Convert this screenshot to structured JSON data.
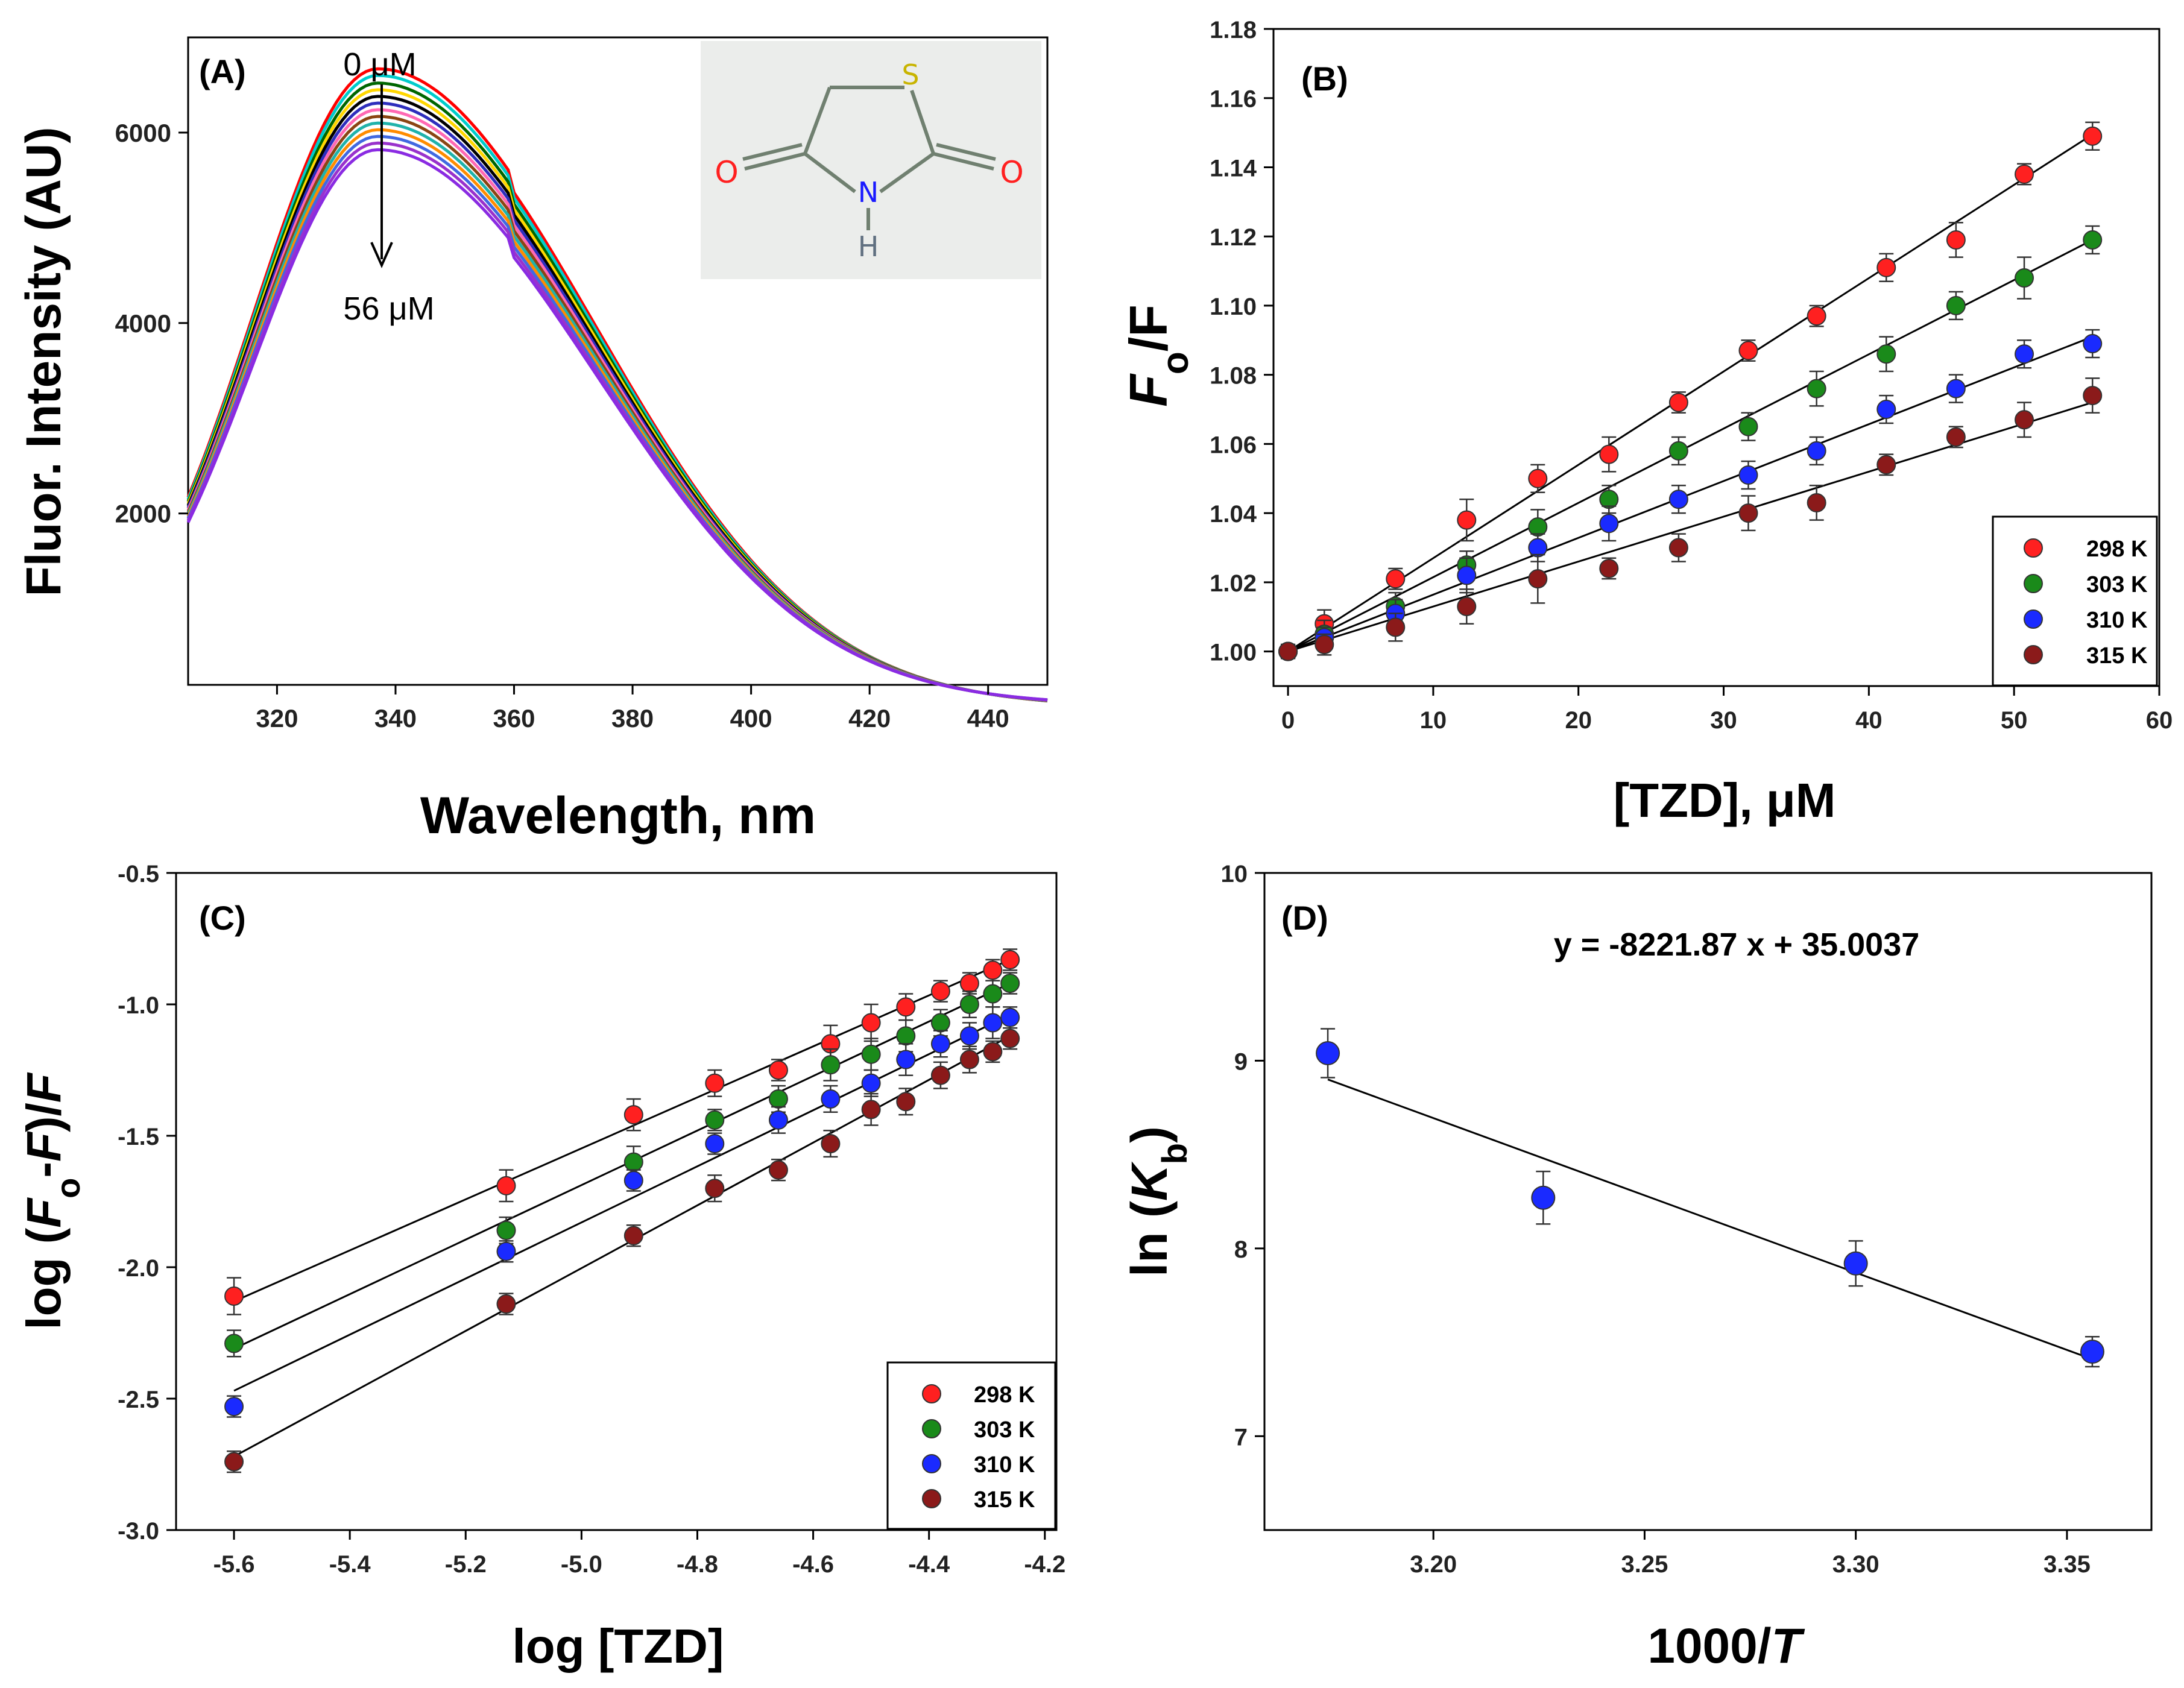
{
  "chart_data": [
    {
      "type": "line",
      "panel": "(A)",
      "title": "",
      "xlabel": "Wavelength, nm",
      "ylabel": "Fluor. Intensity (AU)",
      "xlim": [
        305,
        450
      ],
      "ylim": [
        200,
        7000
      ],
      "xticks": [
        320,
        340,
        360,
        380,
        400,
        420,
        440
      ],
      "yticks": [
        2000,
        4000,
        6000
      ],
      "annotations": {
        "top": "0 μM",
        "bottom": "56 μM"
      },
      "peak_wavelength": 337,
      "peak_max": 6550,
      "peak_min": 5700,
      "series_count": 13,
      "series_colors": [
        "#ff0000",
        "#00cccc",
        "#006600",
        "#ffd700",
        "#000000",
        "#2e2ebd",
        "#ff69b4",
        "#8b4513",
        "#20b2aa",
        "#ff8c00",
        "#4169e1",
        "#9932cc",
        "#8a2be2"
      ],
      "series_peaks": [
        6550,
        6480,
        6400,
        6330,
        6260,
        6190,
        6120,
        6050,
        5980,
        5910,
        5840,
        5770,
        5700
      ],
      "inset": {
        "atoms": {
          "S": "S",
          "N": "N",
          "H": "H",
          "O1": "O",
          "O2": "O"
        },
        "colors": {
          "S": "#c8b400",
          "N": "#1a1aff",
          "H": "#607080",
          "O": "#ff2020",
          "bond": "#708070",
          "bg": "#ebedeb"
        }
      }
    },
    {
      "type": "scatter",
      "panel": "(B)",
      "xlabel": "[TZD], μM",
      "ylabel_main": "F",
      "ylabel_sub": "o",
      "ylabel_tail": "/F",
      "xlim": [
        -1,
        60
      ],
      "ylim": [
        0.99,
        1.18
      ],
      "xticks": [
        0,
        10,
        20,
        30,
        40,
        50,
        60
      ],
      "yticks": [
        1.0,
        1.02,
        1.04,
        1.06,
        1.08,
        1.1,
        1.12,
        1.14,
        1.16,
        1.18
      ],
      "x": [
        0,
        2.5,
        7.4,
        12.3,
        17.2,
        22.1,
        26.9,
        31.7,
        36.4,
        41.2,
        46.0,
        50.7,
        55.4
      ],
      "series": [
        {
          "name": "298 K",
          "color": "#ff2020",
          "values": [
            1.0,
            1.008,
            1.021,
            1.038,
            1.05,
            1.057,
            1.072,
            1.087,
            1.097,
            1.111,
            1.119,
            1.138,
            1.149
          ],
          "err": [
            0.002,
            0.004,
            0.003,
            0.006,
            0.004,
            0.005,
            0.003,
            0.003,
            0.003,
            0.004,
            0.005,
            0.003,
            0.004
          ],
          "fit": [
            1.0,
            1.1495
          ]
        },
        {
          "name": "303 K",
          "color": "#1a8a1a",
          "values": [
            1.0,
            1.005,
            1.013,
            1.025,
            1.036,
            1.044,
            1.058,
            1.065,
            1.076,
            1.086,
            1.1,
            1.108,
            1.119
          ],
          "err": [
            0.002,
            0.004,
            0.004,
            0.004,
            0.005,
            0.004,
            0.004,
            0.004,
            0.005,
            0.005,
            0.004,
            0.006,
            0.004
          ],
          "fit": [
            1.0,
            1.119
          ]
        },
        {
          "name": "310 K",
          "color": "#1a2aff",
          "values": [
            1.0,
            1.004,
            1.011,
            1.022,
            1.03,
            1.037,
            1.044,
            1.051,
            1.058,
            1.07,
            1.076,
            1.086,
            1.089
          ],
          "err": [
            0.002,
            0.003,
            0.004,
            0.005,
            0.004,
            0.005,
            0.004,
            0.004,
            0.004,
            0.004,
            0.004,
            0.004,
            0.004
          ],
          "fit": [
            1.0,
            1.091
          ]
        },
        {
          "name": "315 K",
          "color": "#8b1a1a",
          "values": [
            1.0,
            1.002,
            1.007,
            1.013,
            1.021,
            1.024,
            1.03,
            1.04,
            1.043,
            1.054,
            1.062,
            1.067,
            1.074
          ],
          "err": [
            0.002,
            0.003,
            0.004,
            0.005,
            0.007,
            0.003,
            0.004,
            0.005,
            0.005,
            0.003,
            0.003,
            0.005,
            0.005
          ],
          "fit": [
            1.0,
            1.072
          ]
        }
      ],
      "legend": {
        "position": "bottom-right",
        "labels": [
          "298 K",
          "303 K",
          "310 K",
          "315 K"
        ]
      }
    },
    {
      "type": "scatter",
      "panel": "(C)",
      "xlabel": "log [TZD]",
      "ylabel_pre": "log (",
      "ylabel_f1": "F",
      "ylabel_sub": "o",
      "ylabel_mid": "-",
      "ylabel_f2": "F",
      "ylabel_post": ")/",
      "ylabel_f3": "F",
      "xlim": [
        -5.7,
        -4.18
      ],
      "ylim": [
        -3.0,
        -0.5
      ],
      "xticks": [
        -5.6,
        -5.4,
        -5.2,
        -5.0,
        -4.8,
        -4.6,
        -4.4,
        -4.2
      ],
      "yticks": [
        -3.0,
        -2.5,
        -2.0,
        -1.5,
        -1.0,
        -0.5
      ],
      "x": [
        -5.6,
        -5.13,
        -4.91,
        -4.77,
        -4.66,
        -4.57,
        -4.5,
        -4.44,
        -4.38,
        -4.33,
        -4.29,
        -4.26
      ],
      "series": [
        {
          "name": "298 K",
          "color": "#ff2020",
          "values": [
            -2.11,
            -1.69,
            -1.42,
            -1.3,
            -1.25,
            -1.15,
            -1.07,
            -1.01,
            -0.95,
            -0.92,
            -0.87,
            -0.83
          ],
          "err": [
            0.07,
            0.06,
            0.06,
            0.05,
            0.04,
            0.07,
            0.07,
            0.05,
            0.04,
            0.04,
            0.04,
            0.04
          ],
          "fit": [
            -2.13,
            -0.83
          ]
        },
        {
          "name": "303 K",
          "color": "#1a8a1a",
          "values": [
            -2.29,
            -1.86,
            -1.6,
            -1.44,
            -1.36,
            -1.23,
            -1.19,
            -1.12,
            -1.07,
            -1.0,
            -0.96,
            -0.92
          ],
          "err": [
            0.05,
            0.05,
            0.06,
            0.04,
            0.05,
            0.06,
            0.06,
            0.06,
            0.05,
            0.05,
            0.05,
            0.04
          ],
          "fit": [
            -2.31,
            -0.92
          ]
        },
        {
          "name": "310 K",
          "color": "#1a2aff",
          "values": [
            -2.53,
            -1.94,
            -1.67,
            -1.53,
            -1.44,
            -1.36,
            -1.3,
            -1.21,
            -1.15,
            -1.12,
            -1.07,
            -1.05
          ],
          "err": [
            0.04,
            0.04,
            0.04,
            0.04,
            0.05,
            0.05,
            0.05,
            0.06,
            0.05,
            0.05,
            0.06,
            0.04
          ],
          "fit": [
            -2.47,
            -1.04
          ]
        },
        {
          "name": "315 K",
          "color": "#8b1a1a",
          "values": [
            -2.74,
            -2.14,
            -1.88,
            -1.7,
            -1.63,
            -1.53,
            -1.4,
            -1.37,
            -1.27,
            -1.21,
            -1.18,
            -1.13
          ],
          "err": [
            0.04,
            0.04,
            0.04,
            0.05,
            0.04,
            0.05,
            0.06,
            0.05,
            0.05,
            0.05,
            0.04,
            0.04
          ],
          "fit": [
            -2.72,
            -1.12
          ]
        }
      ],
      "legend": {
        "position": "bottom-right",
        "labels": [
          "298 K",
          "303 K",
          "310 K",
          "315 K"
        ]
      }
    },
    {
      "type": "scatter",
      "panel": "(D)",
      "xlabel_main": "1000/",
      "xlabel_it": "T",
      "ylabel_pre": "ln (",
      "ylabel_k": "K",
      "ylabel_sub": "b",
      "ylabel_post": ")",
      "equation": "y = -8221.87 x + 35.0037",
      "xlim": [
        3.16,
        3.37
      ],
      "ylim": [
        6.5,
        10.0
      ],
      "xticks": [
        3.2,
        3.25,
        3.3,
        3.35
      ],
      "xtick_labels": [
        "3.20",
        "3.25",
        "3.30",
        "3.35"
      ],
      "yticks": [
        7,
        8,
        9,
        10
      ],
      "x": [
        3.175,
        3.226,
        3.3,
        3.356
      ],
      "values": [
        9.04,
        8.27,
        7.92,
        7.45
      ],
      "err": [
        0.13,
        0.14,
        0.12,
        0.08
      ],
      "color": "#1a2aff",
      "fit_x": [
        3.175,
        3.356
      ],
      "fit_y": [
        8.9,
        7.41
      ]
    }
  ]
}
